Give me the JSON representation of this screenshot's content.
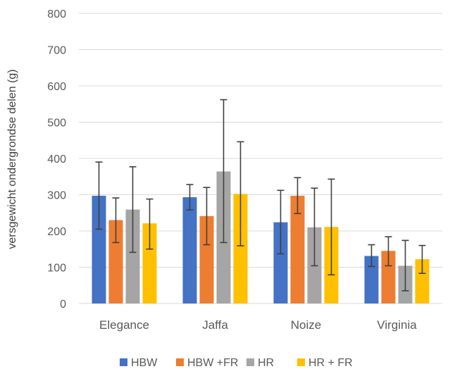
{
  "chart_data": {
    "type": "bar",
    "title": "",
    "xlabel": "",
    "ylabel": "versgewicht ondergrondse delen (g)",
    "ylim": [
      0,
      800
    ],
    "yticks": [
      0,
      100,
      200,
      300,
      400,
      500,
      600,
      700,
      800
    ],
    "grid": true,
    "legend_position": "bottom",
    "categories": [
      "Elegance",
      "Jaffa",
      "Noize",
      "Virginia"
    ],
    "series": [
      {
        "name": "HBW",
        "color": "#4472c4",
        "values": [
          297,
          293,
          224,
          131
        ],
        "err_low": [
          205,
          258,
          137,
          102
        ],
        "err_high": [
          390,
          328,
          312,
          162
        ]
      },
      {
        "name": "HBW +FR",
        "color": "#ed7d31",
        "values": [
          230,
          241,
          297,
          145
        ],
        "err_low": [
          168,
          162,
          248,
          104
        ],
        "err_high": [
          291,
          320,
          347,
          184
        ]
      },
      {
        "name": "HR",
        "color": "#a5a5a5",
        "values": [
          259,
          364,
          210,
          104
        ],
        "err_low": [
          141,
          168,
          104,
          35
        ],
        "err_high": [
          377,
          562,
          318,
          174
        ]
      },
      {
        "name": "HR + FR",
        "color": "#ffc000",
        "values": [
          221,
          302,
          211,
          122
        ],
        "err_low": [
          150,
          159,
          79,
          83
        ],
        "err_high": [
          288,
          446,
          343,
          160
        ]
      }
    ]
  }
}
